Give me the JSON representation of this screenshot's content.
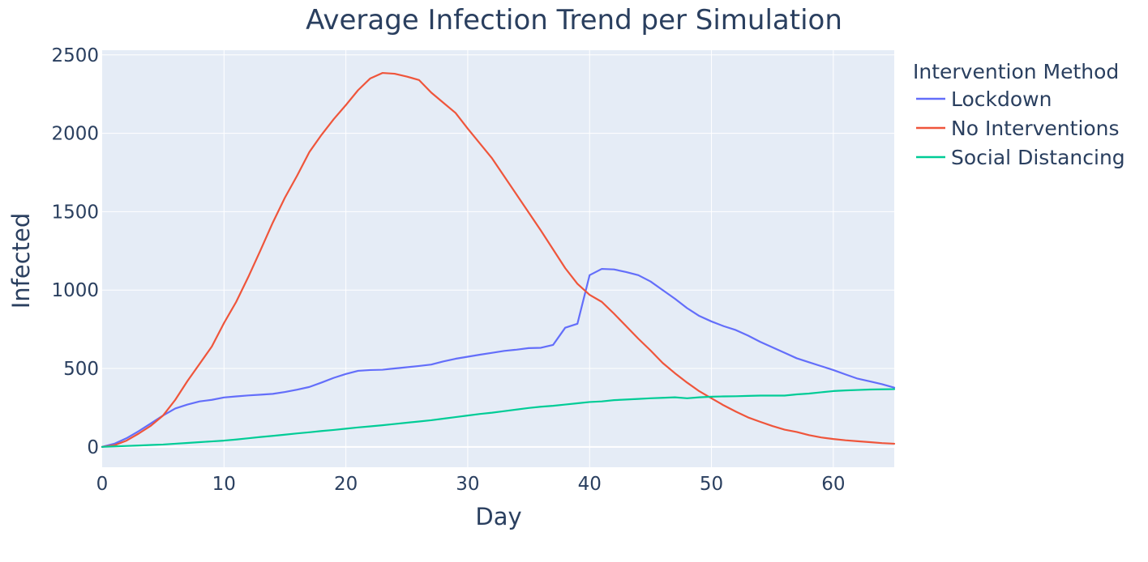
{
  "chart_data": {
    "type": "line",
    "title": "Average Infection Trend per Simulation",
    "xlabel": "Day",
    "ylabel": "Infected",
    "xlim": [
      0,
      65
    ],
    "ylim": [
      -130,
      2530
    ],
    "xticks": [
      0,
      10,
      20,
      30,
      40,
      50,
      60
    ],
    "yticks": [
      0,
      500,
      1000,
      1500,
      2000,
      2500
    ],
    "grid": true,
    "plot_background": "#e5ecf6",
    "legend": {
      "title": "Intervention Method",
      "placement": "right"
    },
    "series": [
      {
        "name": "Lockdown",
        "color": "#636efa",
        "x": [
          0,
          1,
          2,
          3,
          4,
          5,
          6,
          7,
          8,
          9,
          10,
          11,
          12,
          13,
          14,
          15,
          16,
          17,
          18,
          19,
          20,
          21,
          22,
          23,
          24,
          25,
          26,
          27,
          28,
          29,
          30,
          31,
          32,
          33,
          34,
          35,
          36,
          37,
          38,
          39,
          40,
          41,
          42,
          43,
          44,
          45,
          46,
          47,
          48,
          49,
          50,
          51,
          52,
          53,
          54,
          55,
          56,
          57,
          58,
          59,
          60,
          61,
          62,
          63,
          64,
          65
        ],
        "y": [
          0,
          20,
          55,
          100,
          150,
          200,
          245,
          270,
          290,
          300,
          315,
          322,
          328,
          333,
          338,
          350,
          365,
          382,
          410,
          440,
          465,
          485,
          490,
          492,
          500,
          508,
          516,
          525,
          545,
          562,
          575,
          588,
          600,
          612,
          620,
          630,
          632,
          650,
          760,
          785,
          1095,
          1135,
          1132,
          1115,
          1095,
          1055,
          1000,
          945,
          885,
          835,
          800,
          770,
          745,
          710,
          670,
          635,
          600,
          565,
          540,
          515,
          490,
          462,
          435,
          418,
          400,
          378
        ]
      },
      {
        "name": "No Interventions",
        "color": "#ef553b",
        "x": [
          0,
          1,
          2,
          3,
          4,
          5,
          6,
          7,
          8,
          9,
          10,
          11,
          12,
          13,
          14,
          15,
          16,
          17,
          18,
          19,
          20,
          21,
          22,
          23,
          24,
          25,
          26,
          27,
          28,
          29,
          30,
          31,
          32,
          33,
          34,
          35,
          36,
          37,
          38,
          39,
          40,
          41,
          42,
          43,
          44,
          45,
          46,
          47,
          48,
          49,
          50,
          51,
          52,
          53,
          54,
          55,
          56,
          57,
          58,
          59,
          60,
          61,
          62,
          63,
          64,
          65
        ],
        "y": [
          0,
          10,
          40,
          85,
          135,
          200,
          300,
          420,
          530,
          640,
          790,
          925,
          1085,
          1255,
          1430,
          1590,
          1730,
          1880,
          1990,
          2090,
          2180,
          2275,
          2350,
          2385,
          2380,
          2362,
          2340,
          2260,
          2195,
          2130,
          2030,
          1935,
          1840,
          1725,
          1610,
          1495,
          1380,
          1260,
          1140,
          1040,
          970,
          925,
          850,
          770,
          690,
          615,
          535,
          470,
          410,
          355,
          310,
          265,
          225,
          188,
          160,
          133,
          110,
          95,
          75,
          60,
          50,
          42,
          36,
          30,
          24,
          20
        ]
      },
      {
        "name": "Social Distancing",
        "color": "#00cc96",
        "x": [
          0,
          1,
          2,
          3,
          4,
          5,
          6,
          7,
          8,
          9,
          10,
          11,
          12,
          13,
          14,
          15,
          16,
          17,
          18,
          19,
          20,
          21,
          22,
          23,
          24,
          25,
          26,
          27,
          28,
          29,
          30,
          31,
          32,
          33,
          34,
          35,
          36,
          37,
          38,
          39,
          40,
          41,
          42,
          43,
          44,
          45,
          46,
          47,
          48,
          49,
          50,
          51,
          52,
          53,
          54,
          55,
          56,
          57,
          58,
          59,
          60,
          61,
          62,
          63,
          64,
          65
        ],
        "y": [
          0,
          3,
          6,
          9,
          12,
          15,
          20,
          25,
          30,
          35,
          40,
          47,
          55,
          63,
          70,
          78,
          86,
          93,
          101,
          108,
          116,
          124,
          131,
          138,
          146,
          154,
          162,
          170,
          180,
          190,
          200,
          210,
          218,
          228,
          238,
          248,
          256,
          262,
          270,
          278,
          286,
          290,
          298,
          302,
          306,
          310,
          313,
          316,
          310,
          316,
          320,
          322,
          323,
          325,
          327,
          327,
          327,
          335,
          340,
          348,
          356,
          360,
          363,
          366,
          367,
          368
        ]
      }
    ]
  }
}
